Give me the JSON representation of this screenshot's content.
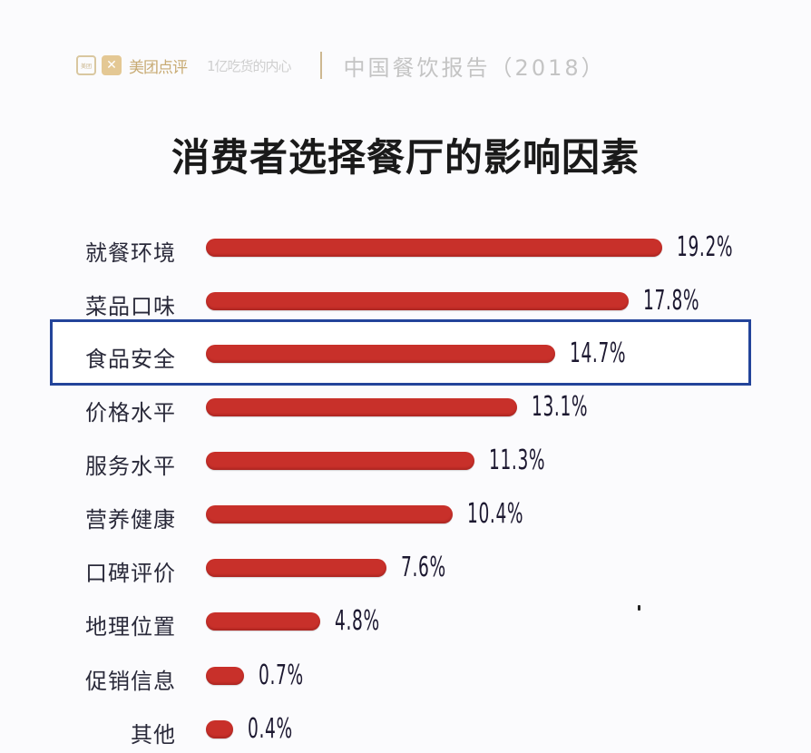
{
  "header": {
    "brand": "美团点评",
    "tagline": "1亿吃货的内心",
    "report": "中国餐饮报告（2018）"
  },
  "title": "消费者选择餐厅的影响因素",
  "highlighted_category": "食品安全",
  "colors": {
    "bar": "#c8302a",
    "highlight_border": "#23449a",
    "text": "#2a2a3a"
  },
  "chart_data": {
    "type": "bar",
    "orientation": "horizontal",
    "title": "消费者选择餐厅的影响因素",
    "xlabel": "",
    "ylabel": "",
    "unit": "%",
    "grid": false,
    "legend": null,
    "categories": [
      "就餐环境",
      "菜品口味",
      "食品安全",
      "价格水平",
      "服务水平",
      "营养健康",
      "口碑评价",
      "地理位置",
      "促销信息",
      "其他"
    ],
    "values": [
      19.2,
      17.8,
      14.7,
      13.1,
      11.3,
      10.4,
      7.6,
      4.8,
      0.7,
      0.4
    ],
    "labels": [
      "19.2%",
      "17.8%",
      "14.7%",
      "13.1%",
      "11.3%",
      "10.4%",
      "7.6%",
      "4.8%",
      "0.7%",
      "0.4%"
    ],
    "annotations": [
      "食品安全 row highlighted with blue box"
    ]
  }
}
